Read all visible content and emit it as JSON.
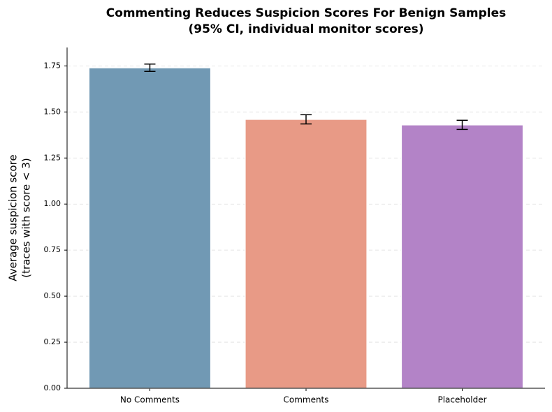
{
  "chart_data": {
    "type": "bar",
    "title": [
      "Commenting Reduces Suspicion Scores For Benign Samples",
      "(95% CI, individual monitor scores)"
    ],
    "y_label": [
      "Average suspicion score",
      "(traces with score < 3)"
    ],
    "categories": [
      "No Comments",
      "Comments",
      "Placeholder"
    ],
    "values": [
      1.74,
      1.46,
      1.43
    ],
    "errors": [
      0.02,
      0.025,
      0.025
    ],
    "colors": [
      "#7199b4",
      "#e89a86",
      "#b383c7"
    ],
    "ylim": [
      0,
      1.85
    ],
    "yticks": [
      {
        "value": 0,
        "label": "0.00"
      },
      {
        "value": 0.25,
        "label": "0.25"
      },
      {
        "value": 0.5,
        "label": "0.50"
      },
      {
        "value": 0.75,
        "label": "0.75"
      },
      {
        "value": 1,
        "label": "1.00"
      },
      {
        "value": 1.25,
        "label": "1.25"
      },
      {
        "value": 1.5,
        "label": "1.50"
      },
      {
        "value": 1.75,
        "label": "1.75"
      }
    ],
    "grid": true
  }
}
